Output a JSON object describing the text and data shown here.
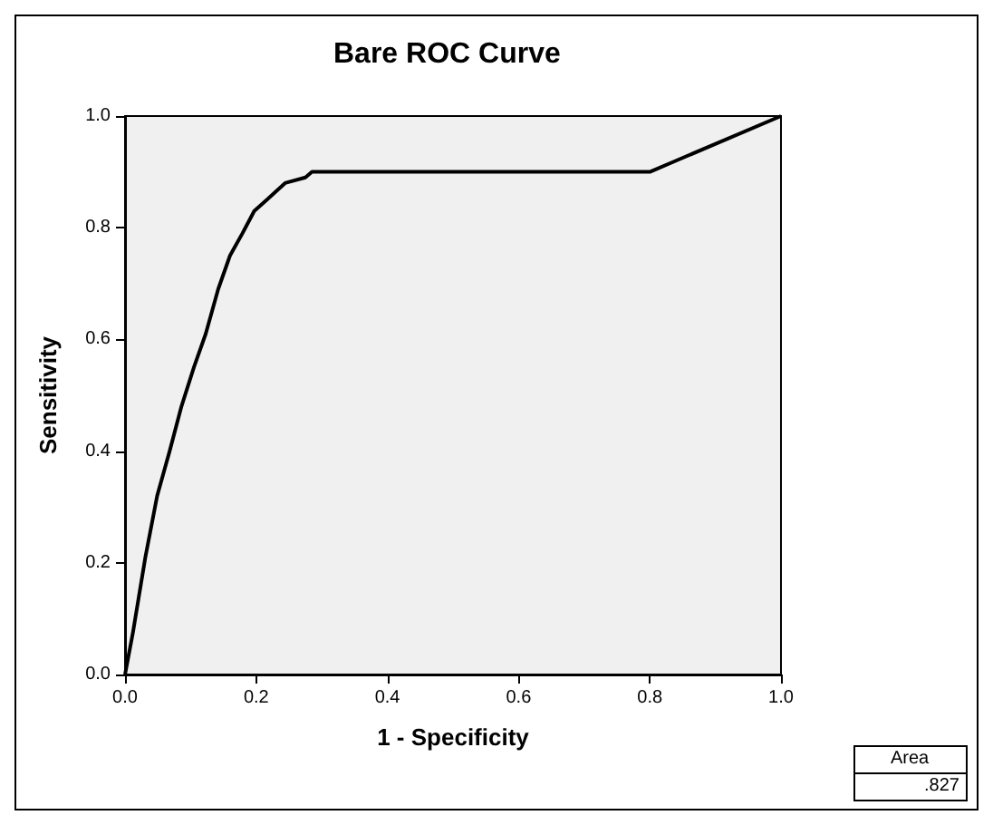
{
  "chart_data": {
    "type": "line",
    "title": "Bare ROC Curve",
    "xlabel": "1 - Specificity",
    "ylabel": "Sensitivity",
    "x": [
      0,
      0.012,
      0.031,
      0.049,
      0.068,
      0.086,
      0.105,
      0.123,
      0.142,
      0.16,
      0.179,
      0.197,
      0.216,
      0.244,
      0.275,
      0.285,
      0.8,
      0.84,
      1
    ],
    "series": [
      {
        "color": "#000000",
        "values": [
          0,
          0.075,
          0.21,
          0.32,
          0.4,
          0.48,
          0.55,
          0.61,
          0.69,
          0.75,
          0.79,
          0.83,
          0.85,
          0.88,
          0.89,
          0.9,
          0.9,
          0.92,
          1
        ]
      }
    ],
    "xlim": [
      0,
      1
    ],
    "ylim": [
      0,
      1
    ],
    "xticks": [
      {
        "value": 0,
        "label": "0.0"
      },
      0.2,
      0.4,
      0.6,
      0.8,
      {
        "value": 1,
        "label": "1.0"
      }
    ],
    "yticks": [
      {
        "value": 0,
        "label": "0.0"
      },
      0.2,
      0.4,
      0.6,
      0.8,
      {
        "value": 1,
        "label": "1.0"
      }
    ],
    "grid": false,
    "marker": "none",
    "line_style": "solid",
    "annotations": [
      "Area",
      ".827"
    ]
  }
}
